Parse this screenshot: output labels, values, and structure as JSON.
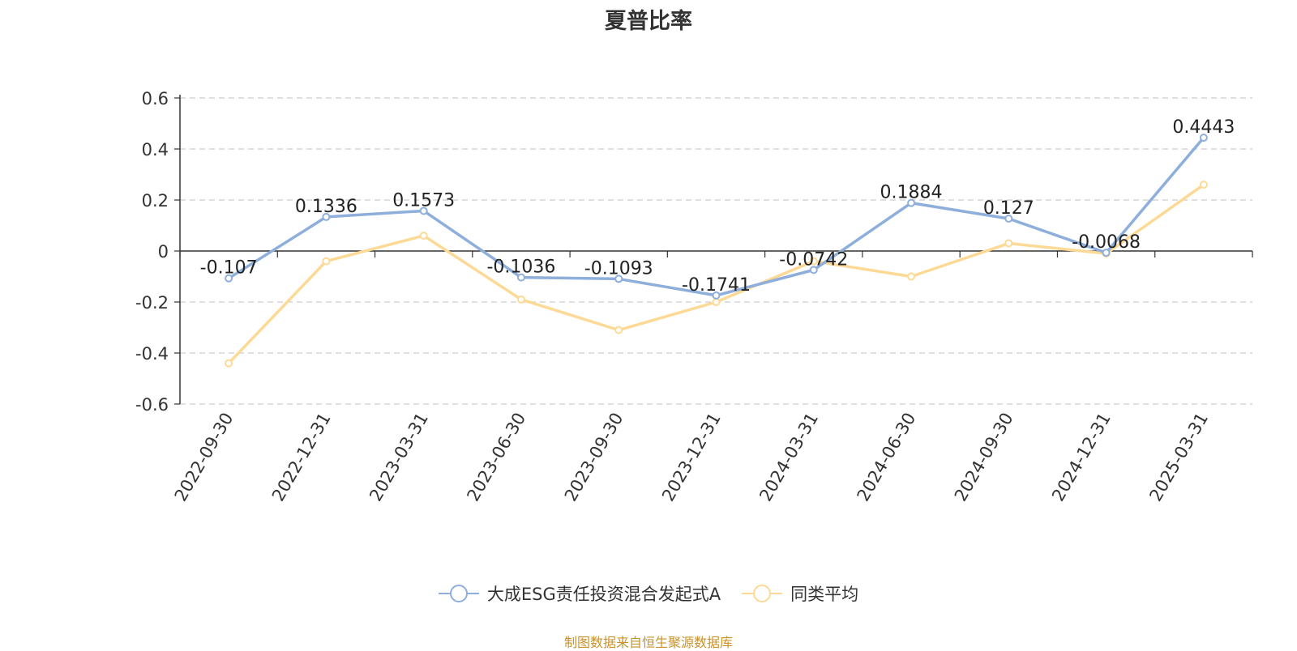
{
  "chart_data": {
    "type": "line",
    "title": "夏普比率",
    "categories": [
      "2022-09-30",
      "2022-12-31",
      "2023-03-31",
      "2023-06-30",
      "2023-09-30",
      "2023-12-31",
      "2024-03-31",
      "2024-06-30",
      "2024-09-30",
      "2024-12-31",
      "2025-03-31"
    ],
    "series": [
      {
        "name": "大成ESG责任投资混合发起式A",
        "color": "#8eaedb",
        "values": [
          -0.107,
          0.1336,
          0.1573,
          -0.1036,
          -0.1093,
          -0.1741,
          -0.0742,
          0.1884,
          0.127,
          -0.0068,
          0.4443
        ],
        "data_labels": [
          "-0.107",
          "0.1336",
          "0.1573",
          "-0.1036",
          "-0.1093",
          "-0.1741",
          "-0.0742",
          "0.1884",
          "0.127",
          "-0.0068",
          "0.4443"
        ]
      },
      {
        "name": "同类平均",
        "color": "#fdd996",
        "values": [
          -0.44,
          -0.04,
          0.06,
          -0.19,
          -0.31,
          -0.2,
          -0.04,
          -0.1,
          0.03,
          -0.01,
          0.26
        ]
      }
    ],
    "ylim": [
      -0.6,
      0.6
    ],
    "yticks": [
      -0.6,
      -0.4,
      -0.2,
      0,
      0.2,
      0.4,
      0.6
    ],
    "ytick_labels": [
      "-0.6",
      "-0.4",
      "-0.2",
      "0",
      "0.2",
      "0.4",
      "0.6"
    ],
    "grid": true,
    "legend_position": "bottom"
  },
  "footer": {
    "source": "制图数据来自恒生聚源数据库"
  }
}
